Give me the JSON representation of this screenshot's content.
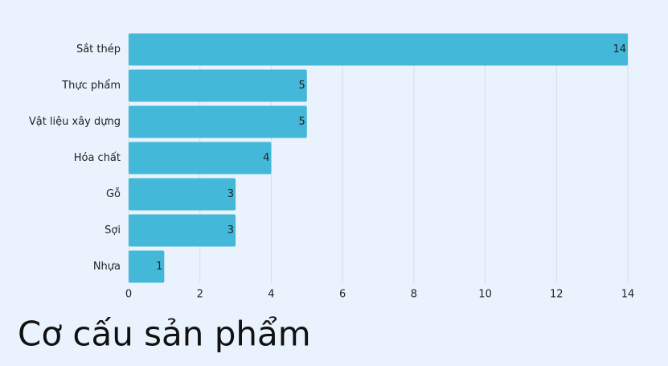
{
  "chart_data": {
    "type": "bar",
    "orientation": "horizontal",
    "title": "Cơ cấu sản phẩm",
    "categories": [
      "Sắt thép",
      "Thực phẩm",
      "Vật liệu xây dựng",
      "Hóa chất",
      "Gỗ",
      "Sợi",
      "Nhựa"
    ],
    "values": [
      14,
      5,
      5,
      4,
      3,
      3,
      1
    ],
    "color": "#44b8d8",
    "xlim": [
      0,
      14
    ],
    "xticks": [
      0,
      2,
      4,
      6,
      8,
      10,
      12,
      14
    ],
    "grid": true
  }
}
